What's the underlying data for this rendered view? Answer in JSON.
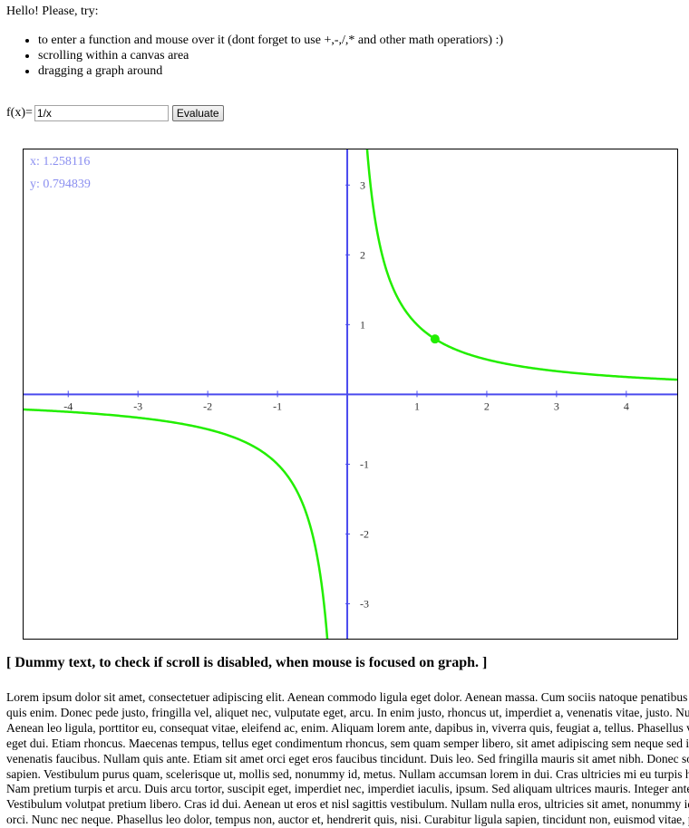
{
  "intro": {
    "greeting": "Hello! Please, try:"
  },
  "tips": [
    "to enter a function and mouse over it (dont forget to use +,-,/,* and other math operatiors) :)",
    "scrolling within a canvas area",
    "dragging a graph around"
  ],
  "form": {
    "fx_label": "f(x)=",
    "function_value": "1/x",
    "evaluate_label": "Evaluate"
  },
  "graph": {
    "readout_x": "x: 1.258116",
    "readout_y": "y: 0.794839",
    "axis_color": "#4a4aee",
    "curve_color": "#22ee00",
    "readout_color": "#8a8ef0",
    "function": "1/x",
    "hover_point": {
      "x": 1.258116,
      "y": 0.794839
    },
    "x_ticks": [
      -4,
      -3,
      -2,
      -1,
      1,
      2,
      3,
      4
    ],
    "y_ticks": [
      3,
      2,
      1,
      -1,
      -2,
      -3
    ],
    "xlim": [
      -4.64,
      4.73
    ],
    "ylim": [
      -3.5,
      3.51
    ]
  },
  "dummy_heading": "[ Dummy text, to check if scroll is disabled, when mouse is focused on graph. ]",
  "lorem_lines": [
    "Lorem ipsum dolor sit amet, consectetuer adipiscing elit. Aenean commodo ligula eget dolor. Aenean massa. Cum sociis natoque penatibus et magnis dis parturient montes,",
    "quis enim. Donec pede justo, fringilla vel, aliquet nec, vulputate eget, arcu. In enim justo, rhoncus ut, imperdiet a, venenatis vitae, justo. Nullam dictum felis eu pede",
    "Aenean leo ligula, porttitor eu, consequat vitae, eleifend ac, enim. Aliquam lorem ante, dapibus in, viverra quis, feugiat a, tellus. Phasellus viverra nulla ut metus varius",
    "eget dui. Etiam rhoncus. Maecenas tempus, tellus eget condimentum rhoncus, sem quam semper libero, sit amet adipiscing sem neque sed ipsum. Nam quam nunc, blandit vel",
    "venenatis faucibus. Nullam quis ante. Etiam sit amet orci eget eros faucibus tincidunt. Duis leo. Sed fringilla mauris sit amet nibh. Donec sodales sagittis magna. Sed consequat",
    "sapien. Vestibulum purus quam, scelerisque ut, mollis sed, nonummy id, metus. Nullam accumsan lorem in dui. Cras ultricies mi eu turpis hendrerit fringilla. Vestibulum ante",
    "Nam pretium turpis et arcu. Duis arcu tortor, suscipit eget, imperdiet nec, imperdiet iaculis, ipsum. Sed aliquam ultrices mauris. Integer ante arcu, accumsan a, consectetuer",
    "Vestibulum volutpat pretium libero. Cras id dui. Aenean ut eros et nisl sagittis vestibulum. Nullam nulla eros, ultricies sit amet, nonummy id, imperdiet feugiat, pede. Sed lectus",
    "orci. Nunc nec neque. Phasellus leo dolor, tempus non, auctor et, hendrerit quis, nisi. Curabitur ligula sapien, tincidunt non, euismod vitae, posuere imperdiet, leo. Maecenas"
  ]
}
